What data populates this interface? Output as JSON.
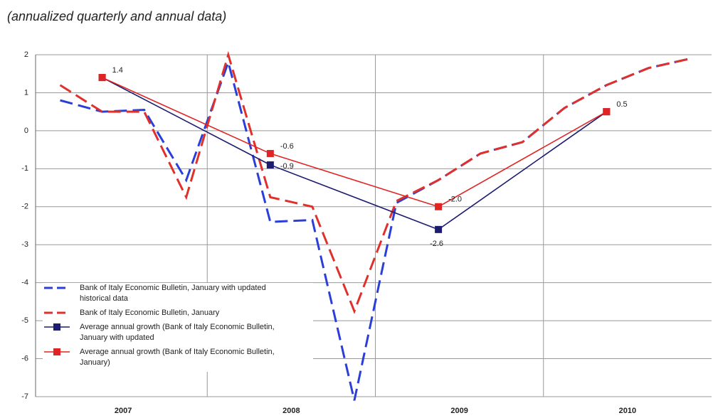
{
  "chart_data": {
    "type": "line",
    "title": "(annualized quarterly and annual data)",
    "categories": [
      null,
      null,
      null,
      null,
      null,
      null,
      null,
      null,
      null,
      null,
      null,
      null,
      null,
      null,
      null,
      null
    ],
    "x_groups": [
      "2007",
      "2008",
      "2009",
      "2010"
    ],
    "ylim": [
      -7,
      2
    ],
    "yticks": [
      -7,
      -6,
      -5,
      -4,
      -3,
      -2,
      -1,
      0,
      1,
      2
    ],
    "grid": true,
    "connect_gaps": true,
    "legend": "lower-left",
    "series": [
      {
        "name": "Bank of Italy Economic Bulletin, January with updated historical data",
        "color": "#2b3fd8",
        "dash": true,
        "values": [
          0.8,
          0.5,
          0.55,
          -1.3,
          1.8,
          -2.4,
          -2.35,
          -7.1,
          -1.9,
          -1.3,
          -0.6,
          -0.3,
          0.6,
          1.2,
          1.65,
          1.9
        ]
      },
      {
        "name": "Bank of Italy Economic Bulletin, January",
        "color": "#e0302c",
        "dash": true,
        "values": [
          1.2,
          0.5,
          0.5,
          -1.75,
          2.0,
          -1.75,
          -2.0,
          -4.75,
          -1.85,
          -1.3,
          -0.6,
          -0.3,
          0.6,
          1.2,
          1.65,
          1.9
        ]
      },
      {
        "name": "Average annual growth (Bank of Italy Economic Bulletin, January with updated",
        "color": "#1c1c70",
        "marker": "square",
        "values": [
          null,
          1.4,
          null,
          null,
          null,
          -0.9,
          null,
          null,
          null,
          -2.6,
          null,
          null,
          null,
          0.5,
          null,
          null
        ],
        "value_labels": [
          null,
          null,
          null,
          null,
          null,
          "-0.9",
          null,
          null,
          null,
          "-2.6",
          null,
          null,
          null,
          null,
          null,
          null
        ]
      },
      {
        "name": "Average annual growth (Bank of Italy Economic Bulletin, January)",
        "color": "#e02424",
        "marker": "square",
        "values": [
          null,
          1.4,
          null,
          null,
          null,
          -0.6,
          null,
          null,
          null,
          -2.0,
          null,
          null,
          null,
          0.5,
          null,
          null
        ],
        "value_labels": [
          null,
          "1.4",
          null,
          null,
          null,
          "-0.6",
          null,
          null,
          null,
          "-2.0",
          null,
          null,
          null,
          "0.5",
          null,
          null
        ]
      }
    ]
  }
}
